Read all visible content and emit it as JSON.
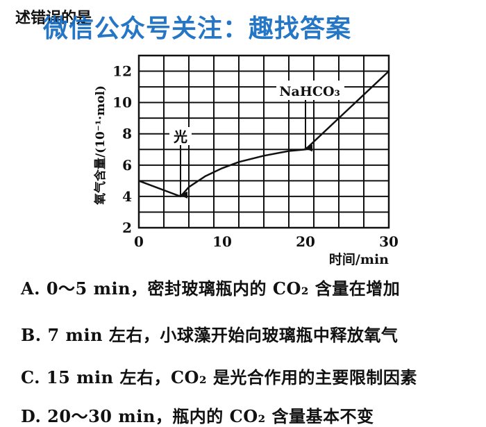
{
  "header": {
    "intro_text": "述错误的是",
    "watermark": "微信公众号关注：趣找答案"
  },
  "chart_data": {
    "type": "line",
    "title": "",
    "xlabel": "时间/min",
    "ylabel": "氧气含量/(10⁻¹·mol)",
    "xlim": [
      0,
      30
    ],
    "ylim": [
      2,
      13
    ],
    "x_ticks": [
      "0",
      "10",
      "20",
      "30"
    ],
    "y_ticks": [
      "2",
      "4",
      "6",
      "8",
      "10",
      "12"
    ],
    "grid": true,
    "series": [
      {
        "points": [
          [
            0,
            5
          ],
          [
            5,
            4
          ],
          [
            6,
            4.6
          ],
          [
            8,
            5.3
          ],
          [
            10,
            5.8
          ],
          [
            12,
            6.2
          ],
          [
            15,
            6.6
          ],
          [
            18,
            6.9
          ],
          [
            20,
            7
          ],
          [
            25,
            9.5
          ],
          [
            30,
            12
          ]
        ]
      }
    ],
    "annotations": [
      {
        "text": "光",
        "x": 5,
        "y": 4
      },
      {
        "text": "NaHCO₃",
        "x": 20,
        "y": 7
      }
    ]
  },
  "options": {
    "a": "A. 0～5 min，密封玻璃瓶内的 CO₂ 含量在增加",
    "b": "B. 7 min 左右，小球藻开始向玻璃瓶中释放氧气",
    "c": "C. 15 min 左右，CO₂ 是光合作用的主要限制因素",
    "d": "D. 20～30 min，瓶内的 CO₂ 含量基本不变"
  }
}
